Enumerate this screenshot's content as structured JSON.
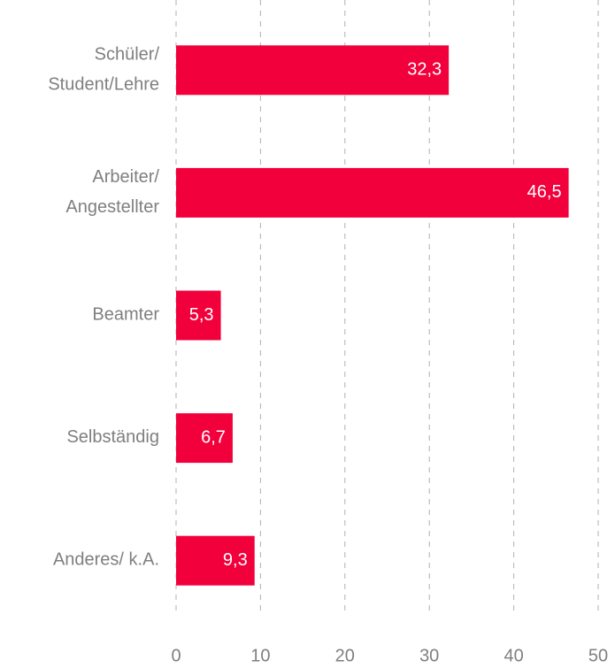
{
  "chart_data": {
    "type": "hbar",
    "categories": [
      "Schüler/\nStudent/Lehre",
      "Arbeiter/\nAngestellter",
      "Beamter",
      "Selbständig",
      "Anderes/ k.A."
    ],
    "values": [
      32.3,
      46.5,
      5.3,
      6.7,
      9.3
    ],
    "value_labels": [
      "32,3",
      "46,5",
      "5,3",
      "6,7",
      "9,3"
    ],
    "color": "#f2003c",
    "xlim": [
      0,
      50
    ],
    "xticks": [
      0,
      10,
      20,
      30,
      40,
      50
    ],
    "grid": true
  }
}
